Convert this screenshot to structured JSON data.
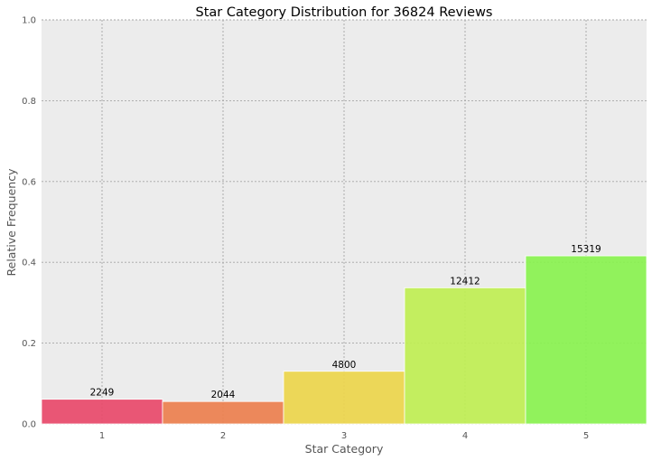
{
  "chart_data": {
    "type": "bar",
    "title": "Star Category Distribution for 36824 Reviews",
    "xlabel": "Star Category",
    "ylabel": "Relative Frequency",
    "categories": [
      "1",
      "2",
      "3",
      "4",
      "5"
    ],
    "values": [
      0.0611,
      0.0555,
      0.1303,
      0.337,
      0.416
    ],
    "counts": [
      "2249",
      "2044",
      "4800",
      "12412",
      "15319"
    ],
    "colors": [
      "#e8496a",
      "#ec7f4e",
      "#ecd54b",
      "#bfee52",
      "#89f24f"
    ],
    "ylim": [
      0,
      1.0
    ],
    "yticks": [
      "0.0",
      "0.2",
      "0.4",
      "0.6",
      "0.8",
      "1.0"
    ],
    "grid": true,
    "background": "#ececec",
    "grid_color": "#a6a6a6"
  }
}
